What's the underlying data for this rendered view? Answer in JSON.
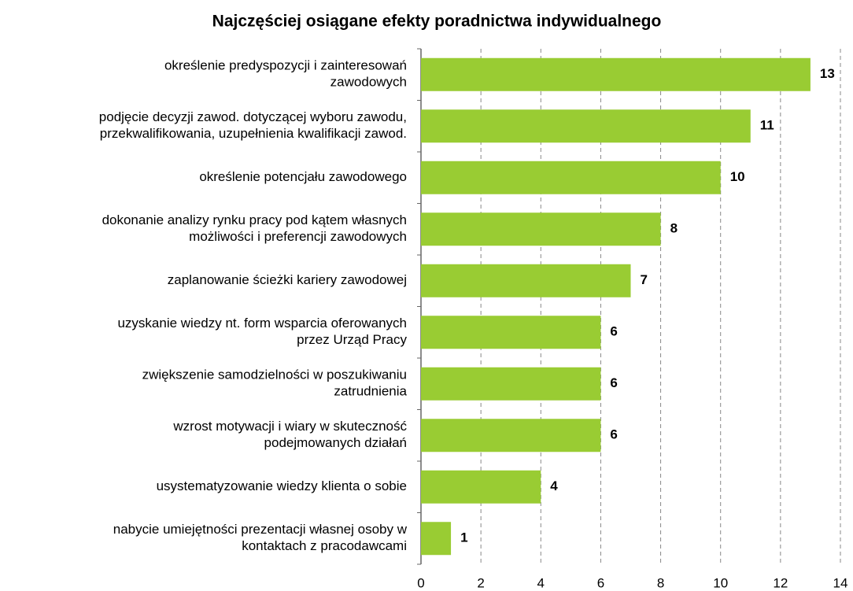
{
  "chart_data": {
    "type": "bar",
    "orientation": "horizontal",
    "title": "Najczęściej osiągane efekty poradnictwa indywidualnego",
    "categories": [
      [
        "określenie predyspozycji i zainteresowań",
        "zawodowych"
      ],
      [
        "podjęcie decyzji zawod. dotyczącej wyboru zawodu,",
        "przekwalifikowania, uzupełnienia kwalifikacji zawod."
      ],
      [
        "określenie potencjału zawodowego"
      ],
      [
        "dokonanie analizy rynku pracy pod kątem własnych",
        "możliwości i preferencji zawodowych"
      ],
      [
        "zaplanowanie ścieżki kariery zawodowej"
      ],
      [
        "uzyskanie wiedzy nt. form wsparcia oferowanych",
        "przez Urząd Pracy"
      ],
      [
        "zwiększenie samodzielności w poszukiwaniu",
        "zatrudnienia"
      ],
      [
        "wzrost motywacji i wiary w skuteczność",
        "podejmowanych działań"
      ],
      [
        "usystematyzowanie wiedzy klienta o sobie"
      ],
      [
        "nabycie umiejętności prezentacji własnej osoby w",
        "kontaktach z pracodawcami"
      ]
    ],
    "values": [
      13,
      11,
      10,
      8,
      7,
      6,
      6,
      6,
      4,
      1
    ],
    "color": "#99cc33",
    "xlim": [
      0,
      14
    ],
    "xticks": [
      0,
      2,
      4,
      6,
      8,
      10,
      12,
      14
    ],
    "grid": true
  }
}
